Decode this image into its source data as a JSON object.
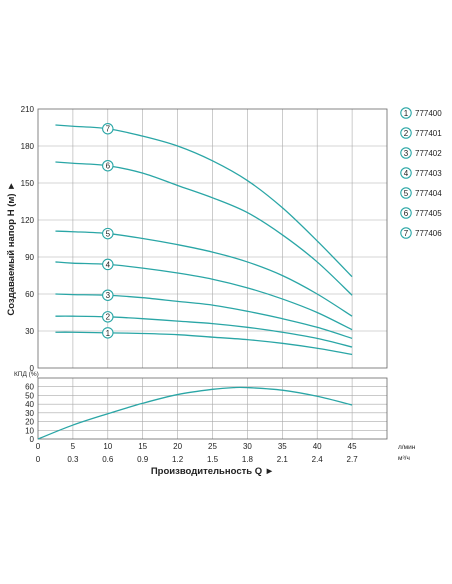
{
  "chart_data": [
    {
      "type": "line",
      "ylabel": "Создаваемый напор H (м) ►",
      "xlim": [
        0,
        50
      ],
      "ylim": [
        0,
        210
      ],
      "yticks": [
        "0",
        "30",
        "60",
        "90",
        "120",
        "150",
        "180",
        "210"
      ],
      "grid": true,
      "legend_position": "right",
      "line_color": "#2aa6a6",
      "grid_color": "#aaaaaa",
      "series": [
        {
          "name": "777400",
          "marker": "1",
          "marker_x": 10,
          "x": [
            2.5,
            5,
            10,
            15,
            20,
            25,
            30,
            35,
            40,
            45
          ],
          "values": [
            29,
            29,
            28.5,
            28,
            27,
            25,
            23,
            20,
            16,
            11
          ]
        },
        {
          "name": "777401",
          "marker": "2",
          "marker_x": 10,
          "x": [
            2.5,
            5,
            10,
            15,
            20,
            25,
            30,
            35,
            40,
            45
          ],
          "values": [
            42,
            42,
            41.5,
            40,
            38,
            36,
            33,
            29,
            24,
            17
          ]
        },
        {
          "name": "777402",
          "marker": "3",
          "marker_x": 10,
          "x": [
            2.5,
            5,
            10,
            15,
            20,
            25,
            30,
            35,
            40,
            45
          ],
          "values": [
            60,
            59.5,
            59,
            57,
            54,
            51,
            46,
            40,
            33,
            24
          ]
        },
        {
          "name": "777403",
          "marker": "4",
          "marker_x": 10,
          "x": [
            2.5,
            5,
            10,
            15,
            20,
            25,
            30,
            35,
            40,
            45
          ],
          "values": [
            86,
            85,
            84,
            81,
            77,
            72,
            65,
            56,
            45,
            31
          ]
        },
        {
          "name": "777404",
          "marker": "5",
          "marker_x": 10,
          "x": [
            2.5,
            5,
            10,
            15,
            20,
            25,
            30,
            35,
            40,
            45
          ],
          "values": [
            111,
            110.5,
            109,
            105,
            100,
            94,
            86,
            75,
            60,
            42
          ]
        },
        {
          "name": "777405",
          "marker": "6",
          "marker_x": 10,
          "x": [
            2.5,
            5,
            10,
            15,
            20,
            25,
            30,
            35,
            40,
            45
          ],
          "values": [
            167,
            166,
            164,
            158,
            148,
            138,
            126,
            108,
            86,
            59
          ]
        },
        {
          "name": "777406",
          "marker": "7",
          "marker_x": 10,
          "x": [
            2.5,
            5,
            10,
            15,
            20,
            25,
            30,
            35,
            40,
            45
          ],
          "values": [
            197,
            196,
            194,
            188,
            180,
            168,
            152,
            130,
            103,
            74
          ]
        }
      ]
    },
    {
      "type": "line",
      "ylabel": "КПД (%)",
      "xlabel": "Производительность Q ►",
      "x_unit_1": "л/мин",
      "x_unit_2": "м³/ч",
      "xlim": [
        0,
        50
      ],
      "ylim": [
        0,
        70
      ],
      "yticks": [
        "0",
        "10",
        "20",
        "30",
        "40",
        "50",
        "60"
      ],
      "xticks": [
        "0",
        "5",
        "10",
        "15",
        "20",
        "25",
        "30",
        "35",
        "40",
        "45"
      ],
      "xticks_2": [
        "0",
        "0.3",
        "0.6",
        "0.9",
        "1.2",
        "1.5",
        "1.8",
        "2.1",
        "2.4",
        "2.7"
      ],
      "grid": true,
      "series": [
        {
          "x": [
            0,
            5,
            10,
            15,
            20,
            25,
            28,
            30,
            35,
            40,
            45
          ],
          "values": [
            0,
            16,
            29,
            41,
            51,
            57,
            59,
            59,
            56,
            49,
            39
          ]
        }
      ]
    }
  ]
}
